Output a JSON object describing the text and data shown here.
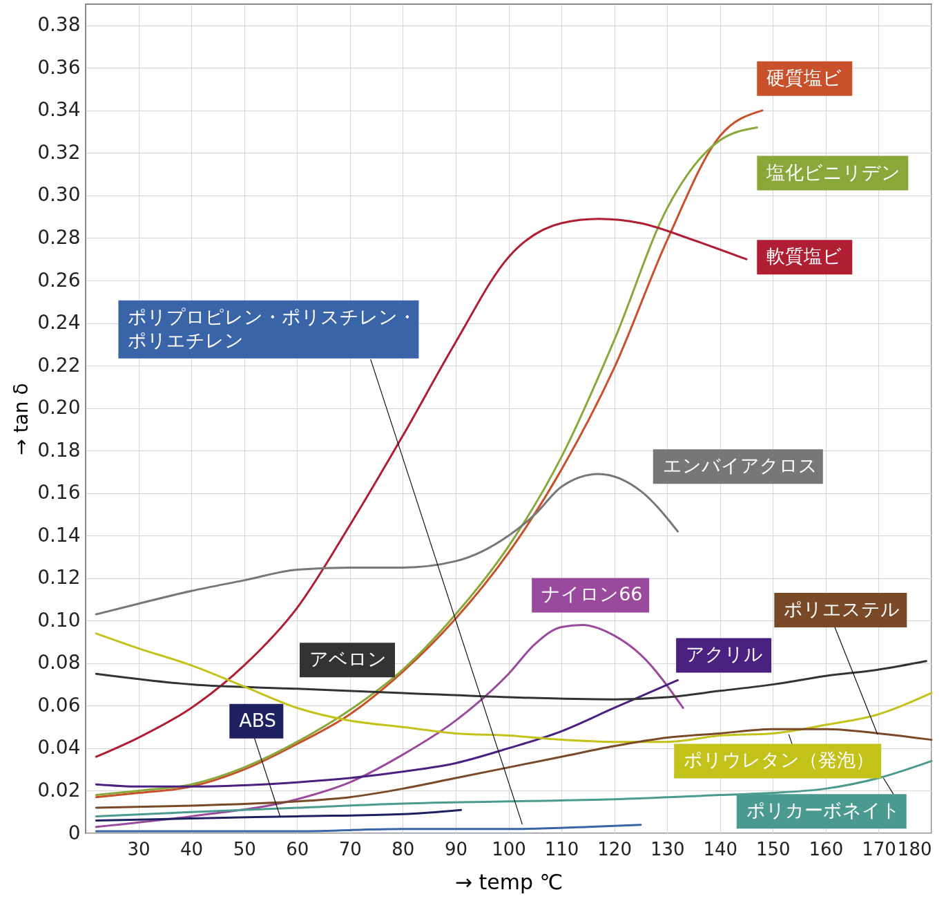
{
  "chart_data": {
    "type": "line",
    "xlabel": "→ temp ℃",
    "ylabel": "→ tan δ",
    "xlim": [
      20,
      180
    ],
    "ylim": [
      0,
      0.39
    ],
    "xticks": [
      30,
      40,
      50,
      60,
      70,
      80,
      90,
      100,
      110,
      120,
      130,
      140,
      150,
      160,
      170,
      180
    ],
    "yticks": [
      0,
      0.02,
      0.04,
      0.06,
      0.08,
      {
        "value": 0.1,
        "label": "0.10"
      },
      0.12,
      0.14,
      0.16,
      0.18,
      {
        "value": 0.2,
        "label": "0.20"
      },
      0.22,
      0.24,
      0.26,
      0.28,
      {
        "value": 0.3,
        "label": "0.30"
      },
      0.32,
      0.34,
      0.36,
      0.38
    ],
    "grid": true,
    "line_style": "solid",
    "series": [
      {
        "name": "硬質塩ビ",
        "color": "#c8502a",
        "x": [
          22,
          30,
          40,
          50,
          60,
          70,
          80,
          90,
          100,
          110,
          120,
          130,
          140,
          148
        ],
        "values": [
          0.017,
          0.019,
          0.022,
          0.03,
          0.042,
          0.056,
          0.076,
          0.101,
          0.132,
          0.171,
          0.219,
          0.279,
          0.328,
          0.34
        ]
      },
      {
        "name": "塩化ビニリデン",
        "color": "#8aa83a",
        "x": [
          22,
          30,
          40,
          50,
          60,
          70,
          80,
          90,
          100,
          110,
          120,
          130,
          140,
          147
        ],
        "values": [
          0.018,
          0.02,
          0.023,
          0.031,
          0.043,
          0.058,
          0.077,
          0.103,
          0.135,
          0.177,
          0.232,
          0.294,
          0.326,
          0.332
        ]
      },
      {
        "name": "軟質塩ビ",
        "color": "#b01e33",
        "x": [
          22,
          30,
          40,
          50,
          60,
          70,
          80,
          90,
          100,
          110,
          117,
          125,
          135,
          145
        ],
        "values": [
          0.036,
          0.045,
          0.059,
          0.079,
          0.106,
          0.145,
          0.187,
          0.231,
          0.271,
          0.287,
          0.289,
          0.287,
          0.279,
          0.27
        ]
      },
      {
        "name": "エンバイアクロス",
        "color": "#777777",
        "x": [
          22,
          30,
          40,
          50,
          60,
          70,
          80,
          90,
          100,
          105,
          110,
          117,
          125,
          132
        ],
        "values": [
          0.103,
          0.108,
          0.114,
          0.119,
          0.124,
          0.125,
          0.125,
          0.128,
          0.14,
          0.15,
          0.163,
          0.169,
          0.161,
          0.142
        ]
      },
      {
        "name": "ナイロン66",
        "color": "#9a4a9c",
        "x": [
          22,
          40,
          60,
          70,
          80,
          90,
          100,
          105,
          110,
          114,
          120,
          125,
          133
        ],
        "values": [
          0.003,
          0.008,
          0.016,
          0.024,
          0.037,
          0.053,
          0.075,
          0.089,
          0.097,
          0.098,
          0.093,
          0.084,
          0.059
        ]
      },
      {
        "name": "アクリル",
        "color": "#4a2080",
        "x": [
          22,
          30,
          40,
          60,
          70,
          80,
          90,
          100,
          110,
          120,
          132
        ],
        "values": [
          0.023,
          0.022,
          0.022,
          0.024,
          0.026,
          0.029,
          0.033,
          0.04,
          0.048,
          0.059,
          0.072
        ]
      },
      {
        "name": "アベロン",
        "color": "#333333",
        "x": [
          22,
          40,
          60,
          80,
          100,
          120,
          130,
          140,
          150,
          160,
          170,
          179
        ],
        "values": [
          0.075,
          0.07,
          0.068,
          0.066,
          0.064,
          0.063,
          0.064,
          0.067,
          0.07,
          0.074,
          0.077,
          0.081
        ]
      },
      {
        "name": "ポリウレタン（発泡）",
        "color": "#c2c21a",
        "x": [
          22,
          30,
          40,
          50,
          60,
          70,
          80,
          90,
          100,
          110,
          120,
          130,
          140,
          150,
          160,
          170,
          180
        ],
        "values": [
          0.094,
          0.087,
          0.079,
          0.069,
          0.059,
          0.053,
          0.05,
          0.047,
          0.046,
          0.044,
          0.043,
          0.043,
          0.046,
          0.047,
          0.051,
          0.056,
          0.066
        ]
      },
      {
        "name": "ポリエステル",
        "color": "#7a4a28",
        "x": [
          22,
          40,
          60,
          70,
          80,
          90,
          100,
          110,
          120,
          130,
          140,
          150,
          160,
          170,
          180
        ],
        "values": [
          0.012,
          0.013,
          0.015,
          0.017,
          0.021,
          0.026,
          0.031,
          0.036,
          0.041,
          0.045,
          0.047,
          0.049,
          0.049,
          0.047,
          0.044
        ]
      },
      {
        "name": "ポリカーボネイト",
        "color": "#4a9a90",
        "x": [
          22,
          40,
          60,
          80,
          100,
          120,
          140,
          150,
          160,
          170,
          180
        ],
        "values": [
          0.008,
          0.01,
          0.012,
          0.014,
          0.015,
          0.016,
          0.018,
          0.019,
          0.021,
          0.026,
          0.034
        ]
      },
      {
        "name": "ABS",
        "color": "#1e2060",
        "x": [
          22,
          40,
          60,
          80,
          91
        ],
        "values": [
          0.006,
          0.007,
          0.008,
          0.009,
          0.011
        ]
      },
      {
        "name": "ポリプロピレン・ポリスチレン・ポリエチレン",
        "color": "#3a64a8",
        "x": [
          22,
          40,
          60,
          80,
          100,
          115,
          125
        ],
        "values": [
          0.001,
          0.001,
          0.001,
          0.002,
          0.002,
          0.003,
          0.004
        ]
      }
    ]
  }
}
